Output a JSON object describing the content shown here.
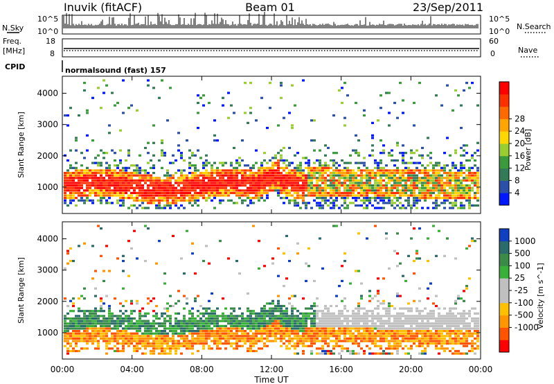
{
  "header": {
    "title_left": "Inuvik (fitACF)",
    "title_center": "Beam 01",
    "title_right": "23/Sep/2011"
  },
  "strip_panels": {
    "nsky_label": "N.Sky",
    "nsky_top": "10^5",
    "nsky_bottom": "10^0",
    "nsearch_label": "N.Search",
    "nsearch_top": "10^5",
    "nsearch_bottom": "10^0",
    "freq_label": "Freq.",
    "freq_unit": "[MHz]",
    "freq_top": "18",
    "freq_bottom": "8",
    "nave_label": "Nave",
    "nave_top": "60",
    "nave_bottom": "0",
    "cpid_label": "CPID",
    "cpid_text": "normalsound (fast) 157"
  },
  "colors": {
    "power_scale": [
      "#0018ff",
      "#2c4fa8",
      "#357a57",
      "#3a9a3c",
      "#9acd32",
      "#ffd700",
      "#ffa500",
      "#ff6a00",
      "#ff3000",
      "#ff0000"
    ],
    "velocity_scale": [
      "#ff0000",
      "#ff5500",
      "#ff9500",
      "#ffc000",
      "#c0c0c0",
      "#c0c0c0",
      "#39b139",
      "#3a8a4a",
      "#2b6b6b",
      "#1040c0"
    ]
  },
  "chart_data": [
    {
      "type": "heatmap",
      "name": "power",
      "ylabel": "Slant Range [km]",
      "yticks": [
        "1000",
        "2000",
        "3000",
        "4000"
      ],
      "ylim": [
        200,
        4500
      ],
      "colorbar_label": "Power [dB]",
      "colorbar_ticks": [
        "4",
        "8",
        "12",
        "16",
        "20",
        "24",
        "28"
      ],
      "color_range": [
        0,
        30
      ],
      "x": [
        "00:00",
        "04:00",
        "08:00",
        "12:00",
        "16:00",
        "20:00",
        "00:00"
      ]
    },
    {
      "type": "heatmap",
      "name": "velocity",
      "ylabel": "Slant Range [km]",
      "yticks": [
        "1000",
        "2000",
        "3000",
        "4000"
      ],
      "ylim": [
        200,
        4500
      ],
      "colorbar_label": "Velocity [m s^-1]",
      "colorbar_ticks": [
        "1000",
        "500",
        "100",
        "25",
        "-25",
        "-100",
        "-500",
        "-1000"
      ],
      "x": [
        "00:00",
        "04:00",
        "08:00",
        "12:00",
        "16:00",
        "20:00",
        "00:00"
      ],
      "xlabel": "Time UT"
    }
  ]
}
